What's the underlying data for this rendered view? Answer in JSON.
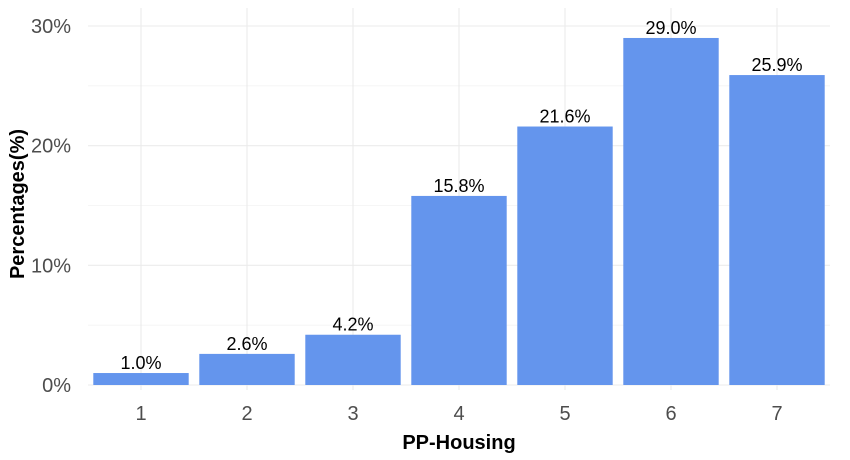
{
  "chart_data": {
    "type": "bar",
    "categories": [
      "1",
      "2",
      "3",
      "4",
      "5",
      "6",
      "7"
    ],
    "values": [
      1.0,
      2.6,
      4.2,
      15.8,
      21.6,
      29.0,
      25.9
    ],
    "data_labels": [
      "1.0%",
      "2.6%",
      "4.2%",
      "15.8%",
      "21.6%",
      "29.0%",
      "25.9%"
    ],
    "title": "",
    "xlabel": "PP-Housing",
    "ylabel": "Percentages(%)",
    "ylim": [
      0,
      30
    ],
    "yticks": [
      0,
      10,
      20,
      30
    ],
    "ytick_labels": [
      "0%",
      "10%",
      "20%",
      "30%"
    ],
    "grid": true,
    "bar_color": "#6495ED"
  }
}
